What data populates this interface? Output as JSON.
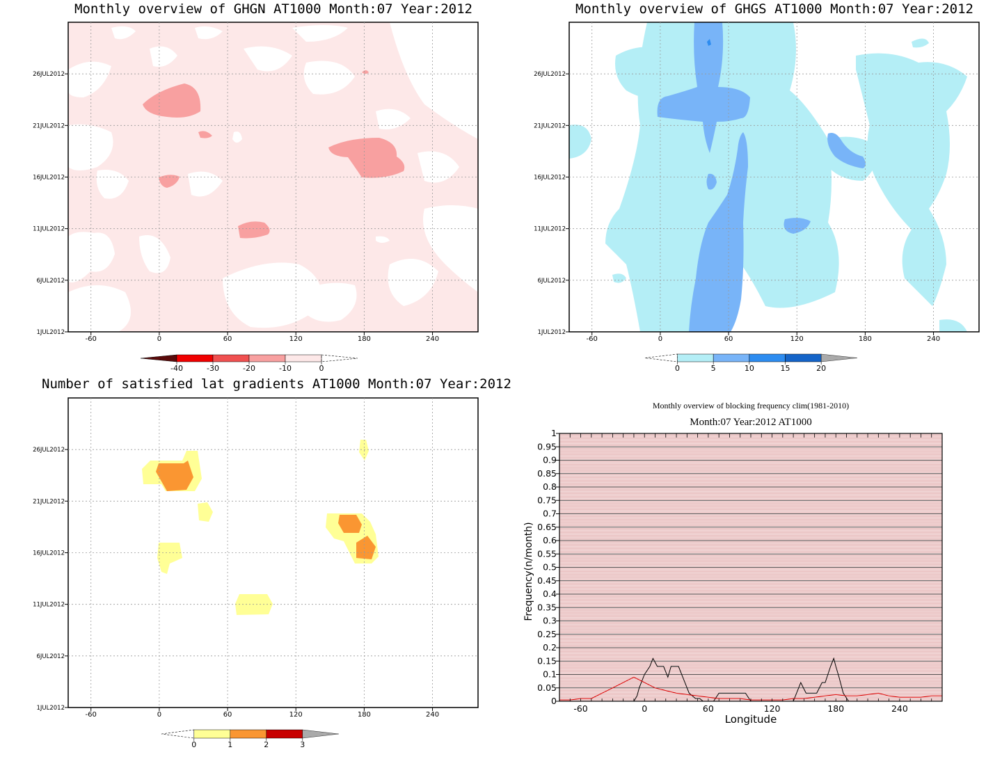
{
  "panels": {
    "ghgn": {
      "title": "Monthly overview of GHGN AT1000 Month:07 Year:2012",
      "colorbar": {
        "labels": [
          "-40",
          "-30",
          "-20",
          "-10",
          "0"
        ],
        "colors": [
          "#5a0a0a",
          "#f00000",
          "#f05050",
          "#f8a0a0",
          "#fde8e8"
        ]
      }
    },
    "ghgs": {
      "title": "Monthly overview of GHGS AT1000 Month:07 Year:2012",
      "colorbar": {
        "labels": [
          "0",
          "5",
          "10",
          "15",
          "20"
        ],
        "colors": [
          "#b4eef6",
          "#78b4f8",
          "#2d8cf0",
          "#1464c8"
        ]
      }
    },
    "satisfied": {
      "title": "Number of satisfied lat gradients AT1000 Month:07 Year:2012",
      "colorbar": {
        "labels": [
          "0",
          "1",
          "2",
          "3"
        ],
        "colors": [
          "#ffff96",
          "#fa9632",
          "#c80000"
        ]
      }
    },
    "blocking": {
      "title_line1": "Monthly overview of blocking frequency clim(1981-2010)",
      "title_line2": "Month:07 Year:2012  AT1000"
    }
  },
  "chart_data": [
    {
      "type": "heatmap",
      "title": "Monthly overview of GHGN AT1000 Month:07 Year:2012",
      "x_ticks": [
        "-60",
        "0",
        "60",
        "120",
        "180",
        "240"
      ],
      "y_ticks": [
        "1JUL2012",
        "6JUL2012",
        "11JUL2012",
        "16JUL2012",
        "21JUL2012",
        "26JUL2012"
      ],
      "xlim": [
        -80,
        280
      ],
      "ylim": [
        "1JUL2012",
        "31JUL2012"
      ],
      "levels": [
        -40,
        -30,
        -20,
        -10,
        0
      ],
      "grid": true
    },
    {
      "type": "heatmap",
      "title": "Monthly overview of GHGS AT1000 Month:07 Year:2012",
      "x_ticks": [
        "-60",
        "0",
        "60",
        "120",
        "180",
        "240"
      ],
      "y_ticks": [
        "1JUL2012",
        "6JUL2012",
        "11JUL2012",
        "16JUL2012",
        "21JUL2012",
        "26JUL2012"
      ],
      "xlim": [
        -80,
        280
      ],
      "ylim": [
        "1JUL2012",
        "31JUL2012"
      ],
      "levels": [
        0,
        5,
        10,
        15,
        20
      ],
      "grid": true
    },
    {
      "type": "heatmap",
      "title": "Number of satisfied lat gradients AT1000 Month:07 Year:2012",
      "x_ticks": [
        "-60",
        "0",
        "60",
        "120",
        "180",
        "240"
      ],
      "y_ticks": [
        "1JUL2012",
        "6JUL2012",
        "11JUL2012",
        "16JUL2012",
        "21JUL2012",
        "26JUL2012"
      ],
      "xlim": [
        -80,
        280
      ],
      "ylim": [
        "1JUL2012",
        "31JUL2012"
      ],
      "levels": [
        0,
        1,
        2,
        3
      ],
      "grid": true
    },
    {
      "type": "line",
      "title": "Monthly overview of blocking frequency clim(1981-2010)",
      "subtitle": "Month:07 Year:2012  AT1000",
      "xlabel": "Longitude",
      "ylabel": "Frequency(n/month)",
      "xlim": [
        -80,
        280
      ],
      "ylim": [
        0,
        1
      ],
      "x_ticks": [
        "-60",
        "0",
        "60",
        "120",
        "180",
        "240"
      ],
      "y_ticks": [
        "0",
        "0.05",
        "0.1",
        "0.15",
        "0.2",
        "0.25",
        "0.3",
        "0.35",
        "0.4",
        "0.45",
        "0.5",
        "0.55",
        "0.6",
        "0.65",
        "0.7",
        "0.75",
        "0.8",
        "0.85",
        "0.9",
        "0.95",
        "1"
      ],
      "series": [
        {
          "color": "#000000",
          "x": [
            -80,
            -10,
            -7,
            -5,
            0,
            5,
            8,
            12,
            18,
            22,
            25,
            28,
            32,
            38,
            42,
            48,
            52,
            55,
            60,
            65,
            70,
            80,
            95,
            100,
            140,
            143,
            147,
            152,
            158,
            162,
            167,
            170,
            175,
            178,
            180,
            183,
            187,
            192,
            200,
            280
          ],
          "y": [
            0,
            0,
            0.02,
            0.05,
            0.1,
            0.13,
            0.16,
            0.13,
            0.13,
            0.09,
            0.13,
            0.13,
            0.13,
            0.07,
            0.03,
            0.01,
            0.01,
            0,
            0,
            0,
            0.03,
            0.03,
            0.03,
            0,
            0,
            0.03,
            0.07,
            0.03,
            0.03,
            0.03,
            0.07,
            0.07,
            0.13,
            0.16,
            0.13,
            0.09,
            0.03,
            0,
            0,
            0
          ]
        },
        {
          "color": "#dd0000",
          "x": [
            -80,
            -70,
            -60,
            -50,
            -40,
            -30,
            -20,
            -15,
            -10,
            -5,
            0,
            10,
            20,
            30,
            40,
            50,
            60,
            70,
            80,
            90,
            100,
            110,
            120,
            130,
            140,
            150,
            160,
            170,
            180,
            190,
            200,
            210,
            220,
            230,
            240,
            250,
            260,
            270,
            280
          ],
          "y": [
            0.005,
            0.005,
            0.01,
            0.01,
            0.03,
            0.05,
            0.07,
            0.08,
            0.09,
            0.08,
            0.07,
            0.05,
            0.04,
            0.03,
            0.025,
            0.02,
            0.015,
            0.01,
            0.01,
            0.01,
            0.005,
            0.005,
            0.005,
            0.005,
            0.01,
            0.01,
            0.015,
            0.02,
            0.025,
            0.02,
            0.02,
            0.025,
            0.03,
            0.02,
            0.015,
            0.015,
            0.015,
            0.02,
            0.02
          ]
        }
      ],
      "grid": true
    }
  ]
}
